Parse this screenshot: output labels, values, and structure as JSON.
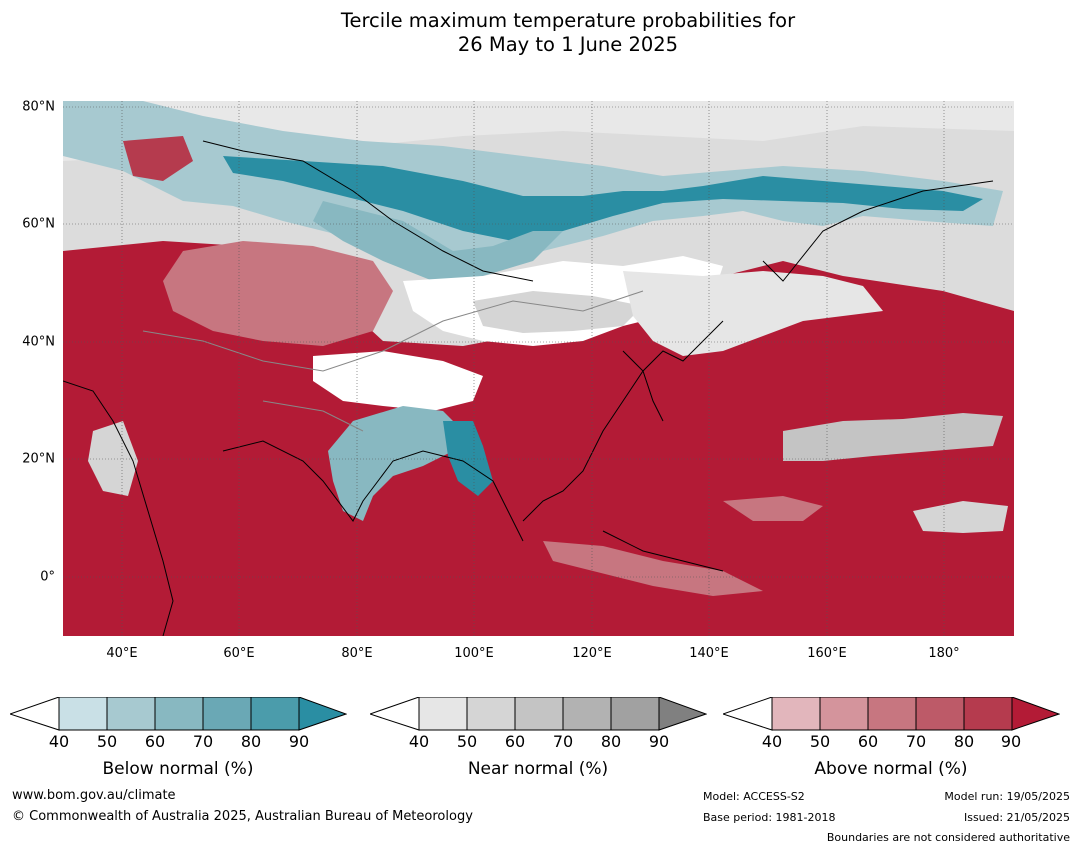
{
  "title_line1": "Tercile maximum temperature probabilities for",
  "title_line2": "26 May to 1 June 2025",
  "lat_labels": [
    "80°N",
    "60°N",
    "40°N",
    "20°N",
    "0°"
  ],
  "lon_labels": [
    "40°E",
    "60°E",
    "80°E",
    "100°E",
    "120°E",
    "140°E",
    "160°E",
    "180°"
  ],
  "colorbars": [
    {
      "title": "Below normal (%)",
      "ticks": [
        "40",
        "50",
        "60",
        "70",
        "80",
        "90"
      ],
      "colors": [
        "#c9e0e6",
        "#a7c9d0",
        "#88b8c1",
        "#6aa8b5",
        "#4b9cab",
        "#2a8ea3"
      ]
    },
    {
      "title": "Near normal (%)",
      "ticks": [
        "40",
        "50",
        "60",
        "70",
        "80",
        "90"
      ],
      "colors": [
        "#e6e6e6",
        "#d5d5d5",
        "#c4c4c4",
        "#b2b2b2",
        "#a1a1a1",
        "#808080"
      ]
    },
    {
      "title": "Above normal (%)",
      "ticks": [
        "40",
        "50",
        "60",
        "70",
        "80",
        "90"
      ],
      "colors": [
        "#e2b6bc",
        "#d4949c",
        "#c77680",
        "#bd5a68",
        "#b53b4e",
        "#b31b36"
      ]
    }
  ],
  "footer": {
    "website": "www.bom.gov.au/climate",
    "copyright": "© Commonwealth of Australia 2025, Australian Bureau of Meteorology",
    "model": "Model: ACCESS-S2",
    "base_period": "Base period: 1981-2018",
    "model_run": "Model run: 19/05/2025",
    "issued": "Issued: 21/05/2025",
    "disclaimer": "Boundaries are not considered authoritative"
  },
  "colors": {
    "above": "#b31b36",
    "below": "#2a8ea3",
    "near": "#d5d5d5"
  }
}
